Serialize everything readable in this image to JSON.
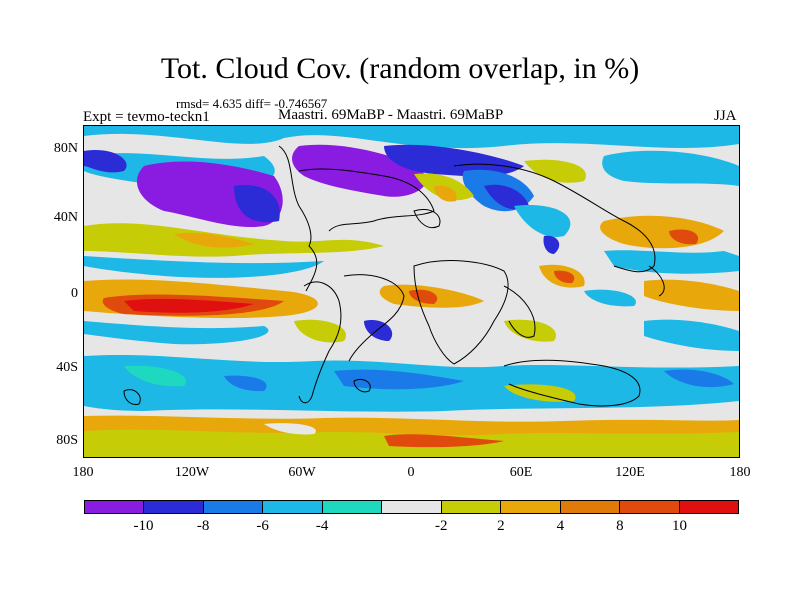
{
  "title": "Tot. Cloud Cov. (random overlap, in %)",
  "stats": "rmsd= 4.635 diff= -0.746567",
  "experiment": "Expt = tevmo-teckn1",
  "comparison": "Maastri.  69MaBP - Maastri.  69MaBP",
  "season": "JJA",
  "lat_labels": [
    "80N",
    "40N",
    "0",
    "40S",
    "80S"
  ],
  "lon_labels": [
    "180",
    "120W",
    "60W",
    "0",
    "60E",
    "120E",
    "180"
  ],
  "colorbar": {
    "colors": [
      "#8a1be0",
      "#2c2cd6",
      "#1a7ae8",
      "#1db8e6",
      "#1ed9c0",
      "#e6e6e6",
      "#c6cc06",
      "#e8a80c",
      "#e07a08",
      "#e04a0c",
      "#e01010"
    ],
    "labels": [
      "-10",
      "-8",
      "-6",
      "-4",
      "-2",
      "2",
      "4",
      "8",
      "10"
    ]
  }
}
